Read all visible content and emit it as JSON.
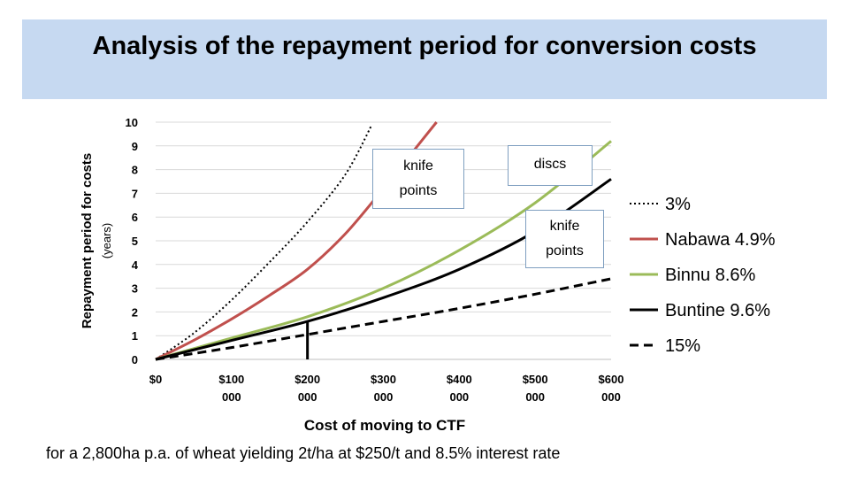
{
  "title": "Analysis of the repayment period for conversion costs",
  "footnote": "for a 2,800ha p.a. of wheat yielding 2t/ha at $250/t  and 8.5% interest rate",
  "callouts": [
    {
      "lines": [
        "knife",
        "points"
      ]
    },
    {
      "lines": [
        "discs"
      ]
    },
    {
      "lines": [
        "knife",
        "points"
      ]
    }
  ],
  "chart_data": {
    "type": "line",
    "xlabel": "Cost of moving to CTF",
    "ylabel": [
      "Repayment  period for costs",
      "(years)"
    ],
    "xlim": [
      0,
      600000
    ],
    "ylim": [
      0,
      10
    ],
    "x_ticks": [
      {
        "value": 0,
        "lines": [
          "$0"
        ]
      },
      {
        "value": 100000,
        "lines": [
          "$100",
          "000"
        ]
      },
      {
        "value": 200000,
        "lines": [
          "$200",
          "000"
        ]
      },
      {
        "value": 300000,
        "lines": [
          "$300",
          "000"
        ]
      },
      {
        "value": 400000,
        "lines": [
          "$400",
          "000"
        ]
      },
      {
        "value": 500000,
        "lines": [
          "$500",
          "000"
        ]
      },
      {
        "value": 600000,
        "lines": [
          "$600",
          "000"
        ]
      }
    ],
    "y_ticks": [
      0,
      1,
      2,
      3,
      4,
      5,
      6,
      7,
      8,
      9,
      10
    ],
    "grid": "horizontal",
    "legend_position": "right",
    "series": [
      {
        "name": "3%",
        "color": "#000000",
        "style": "dotted",
        "points": [
          [
            0,
            0
          ],
          [
            50000,
            1.1
          ],
          [
            100000,
            2.5
          ],
          [
            150000,
            4.1
          ],
          [
            200000,
            5.8
          ],
          [
            250000,
            7.8
          ],
          [
            285000,
            9.9
          ]
        ]
      },
      {
        "name": "Nabawa 4.9%",
        "color": "#c0504d",
        "style": "solid",
        "points": [
          [
            0,
            0
          ],
          [
            50000,
            0.8
          ],
          [
            100000,
            1.7
          ],
          [
            150000,
            2.7
          ],
          [
            200000,
            3.8
          ],
          [
            250000,
            5.3
          ],
          [
            300000,
            7.2
          ],
          [
            350000,
            9.2
          ],
          [
            370000,
            10.0
          ]
        ]
      },
      {
        "name": "Binnu 8.6%",
        "color": "#9bbb59",
        "style": "solid",
        "points": [
          [
            0,
            0
          ],
          [
            100000,
            0.9
          ],
          [
            200000,
            1.8
          ],
          [
            300000,
            3.0
          ],
          [
            400000,
            4.6
          ],
          [
            500000,
            6.6
          ],
          [
            600000,
            9.2
          ]
        ]
      },
      {
        "name": "Buntine 9.6%",
        "color": "#000000",
        "style": "solid",
        "points": [
          [
            0,
            0
          ],
          [
            100000,
            0.8
          ],
          [
            200000,
            1.6
          ],
          [
            300000,
            2.6
          ],
          [
            400000,
            3.8
          ],
          [
            500000,
            5.4
          ],
          [
            600000,
            7.6
          ]
        ]
      },
      {
        "name": "15%",
        "color": "#000000",
        "style": "dashed",
        "points": [
          [
            0,
            0
          ],
          [
            100000,
            0.5
          ],
          [
            200000,
            1.05
          ],
          [
            300000,
            1.6
          ],
          [
            400000,
            2.15
          ],
          [
            500000,
            2.75
          ],
          [
            600000,
            3.4
          ]
        ]
      }
    ],
    "marker_line": {
      "x": 200000,
      "y_from": 0,
      "y_to": 1.6
    }
  }
}
